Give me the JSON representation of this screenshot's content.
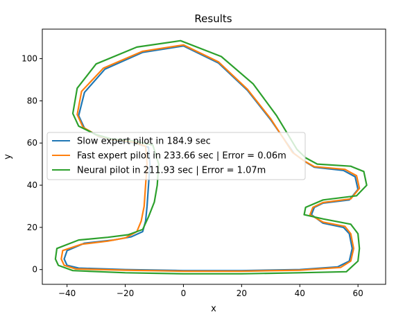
{
  "chart_data": {
    "type": "line",
    "title": "Results",
    "xlabel": "x",
    "ylabel": "y",
    "xlim": [
      -48.5,
      69.5
    ],
    "ylim": [
      -7,
      114
    ],
    "xticks": [
      -40,
      -20,
      0,
      20,
      40,
      60
    ],
    "yticks": [
      0,
      20,
      40,
      60,
      80,
      100
    ],
    "xtick_labels": [
      "−40",
      "−20",
      "0",
      "20",
      "40",
      "60"
    ],
    "ytick_labels": [
      "0",
      "20",
      "40",
      "60",
      "80",
      "100"
    ],
    "grid": false,
    "legend_position": "center-left",
    "series": [
      {
        "name": "Slow expert pilot in 184.9 sec",
        "color": "#1f77b4",
        "x": [
          -12,
          -12.5,
          -13,
          -14,
          -18,
          -24,
          -34,
          -40,
          -41,
          -40,
          -36,
          -20,
          0,
          20,
          40,
          53,
          57,
          58,
          57,
          55,
          48,
          44,
          45,
          48,
          57,
          60,
          59,
          55,
          45,
          42,
          38,
          30,
          22,
          12,
          0,
          -14,
          -27,
          -34,
          -36,
          -34,
          -29,
          -24,
          -17,
          -12,
          -11.5,
          -12
        ],
        "y": [
          40,
          30,
          23,
          18,
          15.5,
          14,
          12.5,
          9,
          5,
          2,
          0.7,
          0,
          -0.5,
          -0.5,
          0,
          1.3,
          4,
          10,
          17,
          20,
          22,
          26,
          29.5,
          31.5,
          33,
          38,
          44,
          47,
          48.5,
          51,
          55,
          71,
          85,
          98,
          106,
          103,
          95,
          84,
          73,
          67,
          63,
          61,
          60,
          58,
          50,
          40
        ]
      },
      {
        "name": "Fast expert pilot in 233.66 sec | Error = 0.06m",
        "color": "#ff7f0e",
        "x": [
          -13,
          -13.5,
          -14.5,
          -16,
          -20,
          -26,
          -35,
          -41.5,
          -42,
          -41,
          -37,
          -20,
          0,
          20,
          40,
          54,
          57.5,
          58.5,
          57.5,
          55.5,
          48,
          43.5,
          44.5,
          48,
          57.5,
          60.5,
          59.5,
          55.5,
          45,
          41.5,
          37.5,
          30,
          22,
          12,
          0,
          -14,
          -27.5,
          -35,
          -36.5,
          -34.5,
          -29.5,
          -24.5,
          -17.5,
          -13,
          -12.5,
          -13
        ],
        "y": [
          40,
          30,
          23,
          18,
          15,
          13.5,
          12,
          9,
          5,
          2,
          0.3,
          -0.3,
          -0.8,
          -0.8,
          -0.3,
          1,
          4,
          10,
          17,
          20.5,
          22.5,
          26,
          29.5,
          31.8,
          33.5,
          38.5,
          44.5,
          47.5,
          48.8,
          51.5,
          55.5,
          71.5,
          85.5,
          98.5,
          106.5,
          103.5,
          95.5,
          84.5,
          73.5,
          67.5,
          63.5,
          61.5,
          60.5,
          58.5,
          50,
          40
        ]
      },
      {
        "name": "Neural pilot in 211.93 sec | Error = 1.07m",
        "color": "#2ca02c",
        "x": [
          -9,
          -10,
          -12,
          -14,
          -19,
          -26,
          -36,
          -43.5,
          -44,
          -43,
          -38,
          -20,
          0,
          20,
          40,
          56,
          60,
          60.5,
          60,
          57.5,
          48,
          41.5,
          42,
          48,
          59.5,
          63,
          62,
          57.5,
          46,
          42,
          39,
          32,
          24,
          13,
          -1,
          -16,
          -30,
          -36.5,
          -38,
          -36,
          -30,
          -25,
          -17,
          -10.5,
          -8.5,
          -9
        ],
        "y": [
          40,
          32,
          25,
          19,
          16.5,
          15.3,
          14,
          10,
          5,
          2,
          -0.5,
          -1.5,
          -2,
          -2,
          -1.5,
          -1,
          4,
          10,
          17,
          21.5,
          24,
          26,
          29.5,
          33,
          35,
          40,
          46.5,
          49,
          50,
          53,
          57,
          73,
          88,
          101,
          108.5,
          105.5,
          97.5,
          86,
          74,
          68,
          64,
          62,
          61,
          59,
          50,
          40
        ]
      }
    ]
  }
}
